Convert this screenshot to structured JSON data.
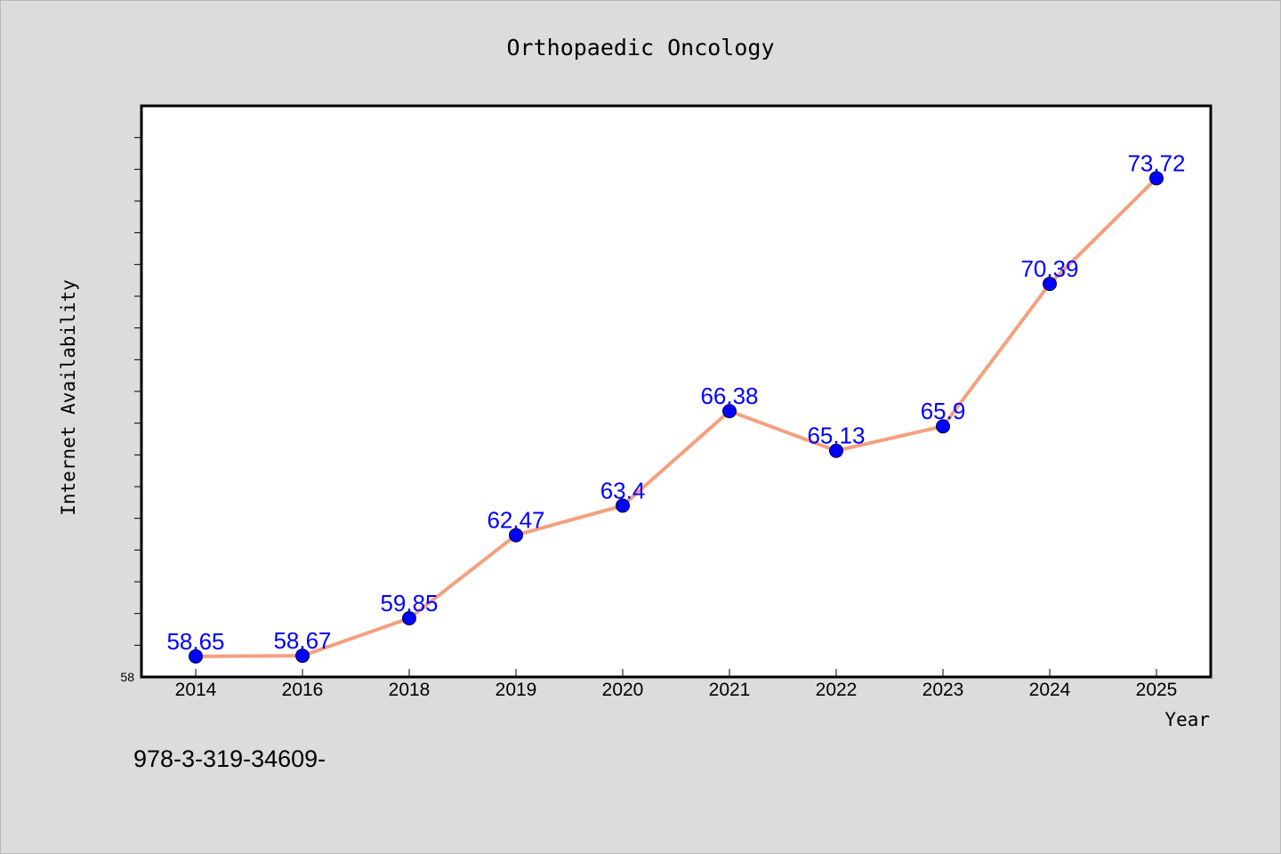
{
  "chart_data": {
    "type": "line",
    "title": "Orthopaedic Oncology",
    "xlabel": "Year",
    "ylabel": "Internet Availability",
    "categories": [
      "2014",
      "2016",
      "2018",
      "2019",
      "2020",
      "2021",
      "2022",
      "2023",
      "2024",
      "2025"
    ],
    "series": [
      {
        "values": [
          58.65,
          58.67,
          59.85,
          62.47,
          63.4,
          66.38,
          65.13,
          65.9,
          70.39,
          73.72
        ],
        "labels": [
          "58.65",
          "58.67",
          "59.85",
          "62.47",
          "63.4",
          "66.38",
          "65.13",
          "65.9",
          "70.39",
          "73.72"
        ]
      }
    ],
    "ylim": [
      58,
      76
    ],
    "y_tick_labels": [
      "58"
    ],
    "grid": false,
    "legend": "none",
    "colors": {
      "line": "#f4a07e",
      "marker": "#0000ff",
      "data_label": "#0000ff",
      "plot_background": "#ffffff",
      "figure_background": "#dcdcdc"
    }
  },
  "footnote": "978-3-319-34609-"
}
